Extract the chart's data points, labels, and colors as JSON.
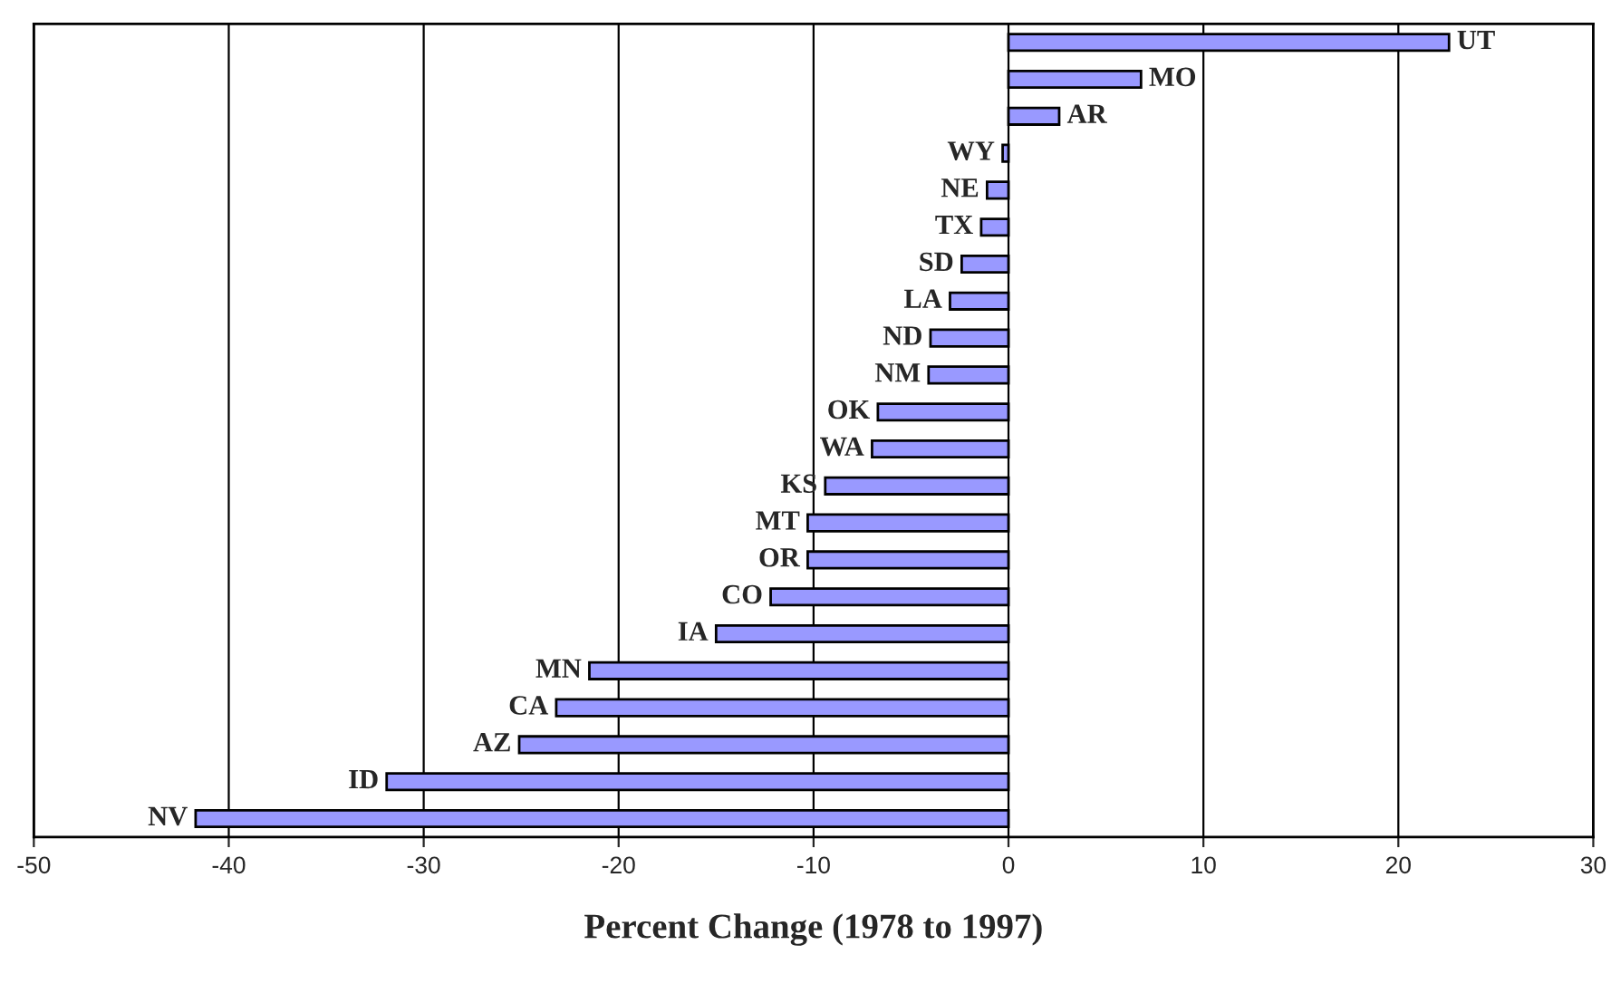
{
  "chart_data": {
    "type": "bar",
    "orientation": "horizontal",
    "xlabel": "Percent Change (1978 to 1997)",
    "categories": [
      "UT",
      "MO",
      "AR",
      "WY",
      "NE",
      "TX",
      "SD",
      "LA",
      "ND",
      "NM",
      "OK",
      "WA",
      "KS",
      "MT",
      "OR",
      "CO",
      "IA",
      "MN",
      "CA",
      "AZ",
      "ID",
      "NV"
    ],
    "values": [
      22.6,
      6.8,
      2.6,
      -0.3,
      -1.1,
      -1.4,
      -2.4,
      -3.0,
      -4.0,
      -4.1,
      -6.7,
      -7.0,
      -9.4,
      -10.3,
      -10.3,
      -12.2,
      -15.0,
      -21.5,
      -23.2,
      -25.1,
      -31.9,
      -41.7
    ],
    "color": "#9999ff",
    "xlim": [
      -50,
      30
    ],
    "xticks": [
      -50,
      -40,
      -30,
      -20,
      -10,
      0,
      10,
      20,
      30
    ],
    "grid": "x",
    "tick_labels": "x"
  }
}
